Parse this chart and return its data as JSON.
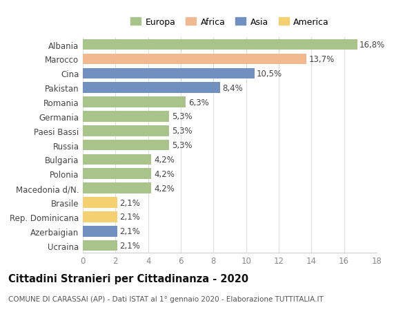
{
  "categories": [
    "Albania",
    "Marocco",
    "Cina",
    "Pakistan",
    "Romania",
    "Germania",
    "Paesi Bassi",
    "Russia",
    "Bulgaria",
    "Polonia",
    "Macedonia d/N.",
    "Brasile",
    "Rep. Dominicana",
    "Azerbaigian",
    "Ucraina"
  ],
  "values": [
    16.8,
    13.7,
    10.5,
    8.4,
    6.3,
    5.3,
    5.3,
    5.3,
    4.2,
    4.2,
    4.2,
    2.1,
    2.1,
    2.1,
    2.1
  ],
  "labels": [
    "16,8%",
    "13,7%",
    "10,5%",
    "8,4%",
    "6,3%",
    "5,3%",
    "5,3%",
    "5,3%",
    "4,2%",
    "4,2%",
    "4,2%",
    "2,1%",
    "2,1%",
    "2,1%",
    "2,1%"
  ],
  "colors": [
    "#a8c48a",
    "#f0b990",
    "#7090c0",
    "#7090c0",
    "#a8c48a",
    "#a8c48a",
    "#a8c48a",
    "#a8c48a",
    "#a8c48a",
    "#a8c48a",
    "#a8c48a",
    "#f5d070",
    "#f5d070",
    "#7090c0",
    "#a8c48a"
  ],
  "legend_labels": [
    "Europa",
    "Africa",
    "Asia",
    "America"
  ],
  "legend_colors": [
    "#a8c48a",
    "#f0b990",
    "#7090c0",
    "#f5d070"
  ],
  "xlim": [
    0,
    18
  ],
  "xticks": [
    0,
    2,
    4,
    6,
    8,
    10,
    12,
    14,
    16,
    18
  ],
  "title": "Cittadini Stranieri per Cittadinanza - 2020",
  "subtitle": "COMUNE DI CARASSAI (AP) - Dati ISTAT al 1° gennaio 2020 - Elaborazione TUTTITALIA.IT",
  "background_color": "#ffffff",
  "bar_height": 0.75,
  "label_fontsize": 8.5,
  "tick_fontsize": 8.5,
  "title_fontsize": 10.5,
  "subtitle_fontsize": 7.5
}
